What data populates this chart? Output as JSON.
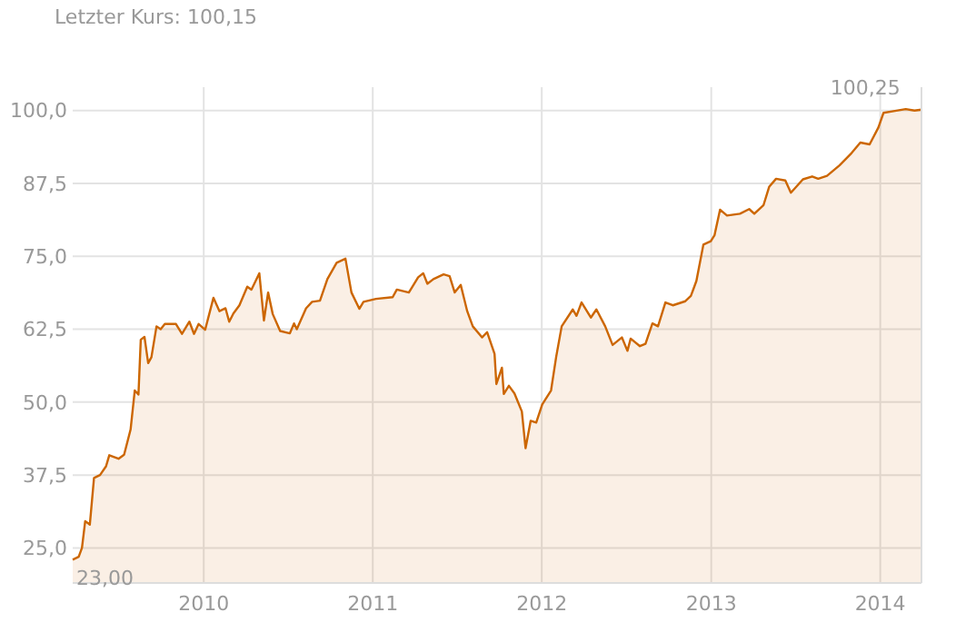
{
  "chart_data": {
    "type": "area",
    "title": "Letzter Kurs: 100,15",
    "x": [
      "2009-03-24",
      "2009-04-06",
      "2009-04-13",
      "2009-04-20",
      "2009-04-30",
      "2009-05-09",
      "2009-05-22",
      "2009-06-04",
      "2009-06-11",
      "2009-07-01",
      "2009-07-13",
      "2009-07-27",
      "2009-08-05",
      "2009-08-13",
      "2009-08-18",
      "2009-08-26",
      "2009-09-03",
      "2009-09-10",
      "2009-09-21",
      "2009-09-30",
      "2009-10-09",
      "2009-11-02",
      "2009-11-15",
      "2009-12-01",
      "2009-12-11",
      "2009-12-21",
      "2010-01-04",
      "2010-01-22",
      "2010-02-04",
      "2010-02-17",
      "2010-02-25",
      "2010-03-06",
      "2010-03-19",
      "2010-04-05",
      "2010-04-14",
      "2010-05-01",
      "2010-05-11",
      "2010-05-20",
      "2010-05-30",
      "2010-06-15",
      "2010-07-06",
      "2010-07-15",
      "2010-07-21",
      "2010-08-10",
      "2010-08-23",
      "2010-09-09",
      "2010-09-25",
      "2010-10-15",
      "2010-11-03",
      "2010-11-16",
      "2010-12-03",
      "2010-12-12",
      "2011-01-08",
      "2011-02-13",
      "2011-02-22",
      "2011-03-20",
      "2011-04-09",
      "2011-04-20",
      "2011-04-29",
      "2011-05-12",
      "2011-06-03",
      "2011-06-16",
      "2011-06-27",
      "2011-07-10",
      "2011-07-24",
      "2011-08-05",
      "2011-08-25",
      "2011-09-05",
      "2011-09-21",
      "2011-09-25",
      "2011-10-07",
      "2011-10-11",
      "2011-10-22",
      "2011-11-03",
      "2011-11-19",
      "2011-11-27",
      "2011-12-08",
      "2011-12-20",
      "2012-01-02",
      "2012-01-21",
      "2012-02-01",
      "2012-02-13",
      "2012-03-08",
      "2012-03-16",
      "2012-03-27",
      "2012-04-16",
      "2012-04-28",
      "2012-05-17",
      "2012-06-02",
      "2012-06-22",
      "2012-07-04",
      "2012-07-11",
      "2012-07-31",
      "2012-08-12",
      "2012-08-27",
      "2012-09-08",
      "2012-09-24",
      "2012-10-10",
      "2012-11-06",
      "2012-11-18",
      "2012-11-30",
      "2012-12-15",
      "2012-12-31",
      "2013-01-08",
      "2013-01-20",
      "2013-02-04",
      "2013-03-04",
      "2013-03-24",
      "2013-04-04",
      "2013-04-24",
      "2013-05-06",
      "2013-05-21",
      "2013-06-10",
      "2013-06-22",
      "2013-07-18",
      "2013-08-07",
      "2013-08-20",
      "2013-09-08",
      "2013-10-05",
      "2013-10-31",
      "2013-11-19",
      "2013-12-09",
      "2013-12-28",
      "2014-01-08",
      "2014-01-30",
      "2014-02-25",
      "2014-03-16",
      "2014-03-31"
    ],
    "series": [
      {
        "color": "#cc6600",
        "values": [
          23.0,
          23.5,
          25.0,
          29.6,
          29.0,
          37.0,
          37.5,
          39.0,
          40.9,
          40.3,
          41.0,
          45.3,
          52.0,
          51.3,
          60.7,
          61.2,
          56.7,
          57.7,
          63.0,
          62.5,
          63.4,
          63.4,
          61.7,
          63.8,
          61.7,
          63.4,
          62.4,
          67.9,
          65.6,
          66.1,
          63.8,
          65.2,
          66.6,
          69.8,
          69.3,
          72.1,
          64.0,
          68.8,
          65.1,
          62.2,
          61.8,
          63.5,
          62.5,
          66.1,
          67.2,
          67.4,
          71.1,
          73.9,
          74.6,
          68.8,
          66.0,
          67.2,
          67.7,
          68.0,
          69.3,
          68.8,
          71.4,
          72.1,
          70.3,
          71.1,
          71.9,
          71.6,
          68.8,
          70.1,
          65.6,
          63.0,
          61.1,
          62.0,
          58.3,
          53.1,
          55.9,
          51.4,
          52.8,
          51.5,
          48.4,
          42.1,
          46.8,
          46.5,
          49.6,
          52.0,
          57.7,
          63.0,
          65.9,
          64.8,
          67.1,
          64.5,
          65.9,
          63.0,
          59.8,
          61.1,
          58.8,
          60.9,
          59.6,
          60.0,
          63.5,
          63.0,
          67.1,
          66.6,
          67.3,
          68.2,
          70.8,
          77.0,
          77.6,
          78.6,
          83.0,
          82.0,
          82.3,
          83.1,
          82.3,
          83.8,
          86.9,
          88.3,
          88.0,
          85.9,
          88.2,
          88.7,
          88.3,
          88.8,
          90.6,
          92.7,
          94.5,
          94.2,
          97.1,
          99.6,
          99.9,
          100.25,
          100.0,
          100.15
        ]
      }
    ],
    "xlim": [
      "2009-03-24",
      "2014-03-31"
    ],
    "xticks": [
      {
        "value": "2010-01-01",
        "label": "2010"
      },
      {
        "value": "2011-01-01",
        "label": "2011"
      },
      {
        "value": "2012-01-01",
        "label": "2012"
      },
      {
        "value": "2013-01-01",
        "label": "2013"
      },
      {
        "value": "2014-01-01",
        "label": "2014"
      }
    ],
    "ylim": [
      19,
      104
    ],
    "yticks": [
      {
        "value": 25,
        "label": "25,0"
      },
      {
        "value": 37.5,
        "label": "37,5"
      },
      {
        "value": 50,
        "label": "50,0"
      },
      {
        "value": 62.5,
        "label": "62,5"
      },
      {
        "value": 75,
        "label": "75,0"
      },
      {
        "value": 87.5,
        "label": "87,5"
      },
      {
        "value": 100,
        "label": "100,0"
      }
    ],
    "grid": true,
    "annotations": [
      {
        "text": "100,25",
        "x": "2014-02-25",
        "y": 100.25
      },
      {
        "text": "23,00",
        "x": "2009-03-24",
        "y": 23
      }
    ]
  }
}
